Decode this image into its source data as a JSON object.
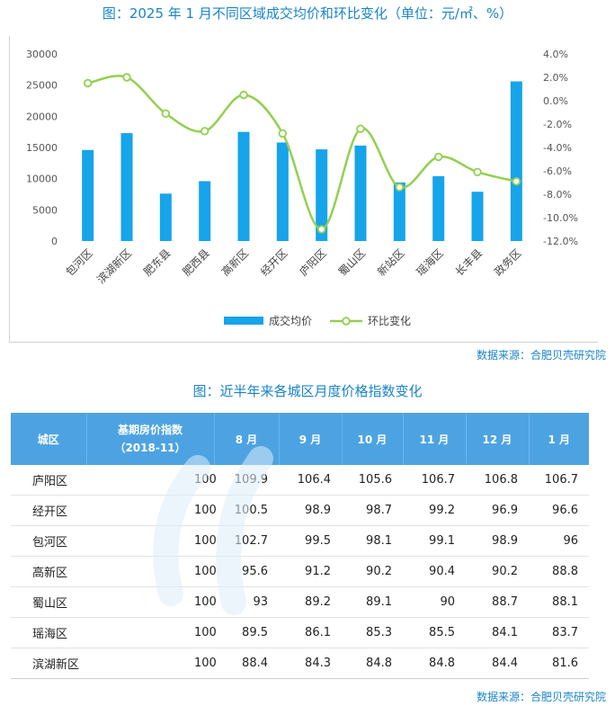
{
  "chart_title": "图：2025 年 1 月不同区域成交均价和环比变化（单位：元/㎡、%）",
  "source_label": "数据来源：合肥贝壳研究院",
  "table_title": "图：近半年来各城区月度价格指数变化",
  "colors": {
    "bar": "#16a4ea",
    "line": "#92d050",
    "title": "#1a84c9",
    "header": "#4da3e2"
  },
  "chart_data": {
    "type": "bar",
    "categories": [
      "包河区",
      "滨湖新区",
      "肥东县",
      "肥西县",
      "高新区",
      "经开区",
      "庐阳区",
      "蜀山区",
      "新站区",
      "瑶海区",
      "长丰县",
      "政务区"
    ],
    "series": [
      {
        "name": "成交均价",
        "type": "bar",
        "axis": "left",
        "values": [
          14600,
          17300,
          7600,
          9600,
          17500,
          15800,
          14700,
          15300,
          9400,
          10400,
          7900,
          25600
        ]
      },
      {
        "name": "环比变化",
        "type": "line",
        "axis": "right",
        "values": [
          1.5,
          2.0,
          -1.1,
          -2.6,
          0.5,
          -2.8,
          -11.0,
          -2.4,
          -7.4,
          -4.8,
          -6.1,
          -6.9
        ]
      }
    ],
    "y_left": {
      "range": [
        0,
        30000
      ],
      "ticks": [
        "0",
        "5000",
        "10000",
        "15000",
        "20000",
        "25000",
        "30000"
      ]
    },
    "y_right": {
      "range": [
        -12,
        4
      ],
      "ticks": [
        "4.0%",
        "2.0%",
        "0.0%",
        "-2.0%",
        "-4.0%",
        "-6.0%",
        "-8.0%",
        "-10.0%",
        "-12.0%"
      ]
    },
    "legend": "bottom",
    "grid": false
  },
  "table": {
    "headers": [
      "城区",
      "基期房价指数",
      "（2018-11）",
      "8 月",
      "9 月",
      "10 月",
      "11 月",
      "12 月",
      "1 月"
    ],
    "rows": [
      [
        "庐阳区",
        "100",
        "109.9",
        "106.4",
        "105.6",
        "106.7",
        "106.8",
        "106.7"
      ],
      [
        "经开区",
        "100",
        "100.5",
        "98.9",
        "98.7",
        "99.2",
        "96.9",
        "96.6"
      ],
      [
        "包河区",
        "100",
        "102.7",
        "99.5",
        "98.1",
        "99.1",
        "98.9",
        "96"
      ],
      [
        "高新区",
        "100",
        "95.6",
        "91.2",
        "90.2",
        "90.4",
        "90.2",
        "88.8"
      ],
      [
        "蜀山区",
        "100",
        "93",
        "89.2",
        "89.1",
        "90",
        "88.7",
        "88.1"
      ],
      [
        "瑶海区",
        "100",
        "89.5",
        "86.1",
        "85.3",
        "85.5",
        "84.1",
        "83.7"
      ],
      [
        "滨湖新区",
        "100",
        "88.4",
        "84.3",
        "84.8",
        "84.8",
        "84.4",
        "81.6"
      ]
    ]
  }
}
